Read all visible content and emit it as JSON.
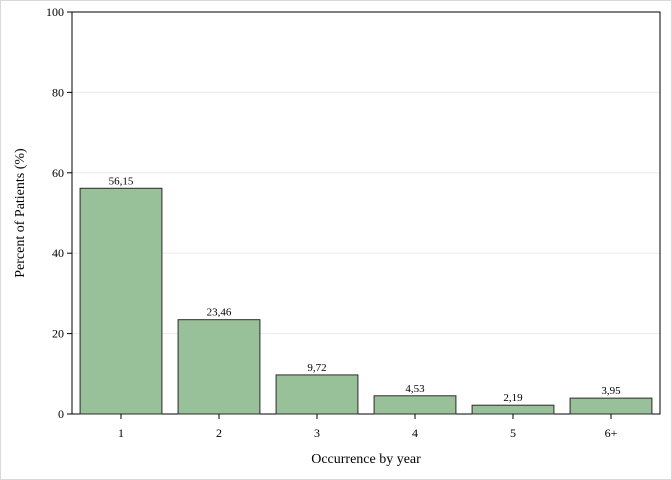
{
  "chart_data": {
    "type": "bar",
    "categories": [
      "1",
      "2",
      "3",
      "4",
      "5",
      "6+"
    ],
    "values": [
      56.15,
      23.46,
      9.72,
      4.53,
      2.19,
      3.95
    ],
    "value_labels": [
      "56,15",
      "23,46",
      "9,72",
      "4,53",
      "2,19",
      "3,95"
    ],
    "xlabel": "Occurrence by year",
    "ylabel": "Percent of Patients (%)",
    "ylim": [
      0,
      100
    ],
    "yticks": [
      0,
      20,
      40,
      60,
      80,
      100
    ],
    "grid": true,
    "bar_color": "#99c199",
    "bar_edge_color": "#2b2b2b",
    "grid_color": "#ebebeb"
  }
}
